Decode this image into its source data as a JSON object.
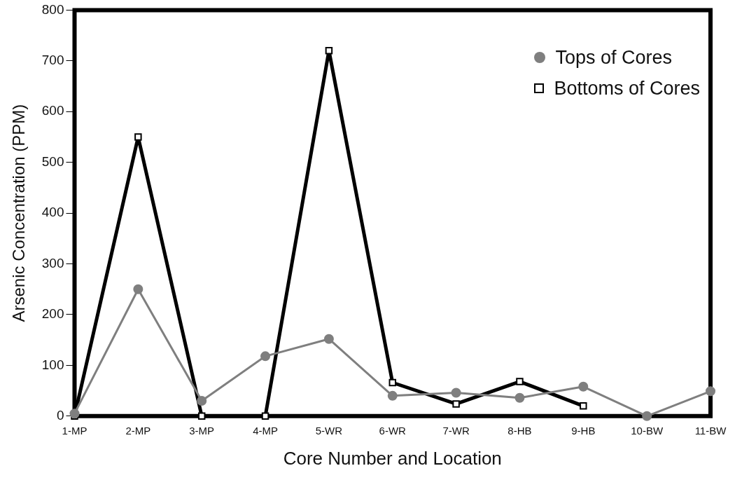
{
  "chart_data": {
    "type": "line",
    "xlabel": "Core Number and Location",
    "ylabel": "Arsenic Concentration (PPM)",
    "categories": [
      "1-MP",
      "2-MP",
      "3-MP",
      "4-MP",
      "5-WR",
      "6-WR",
      "7-WR",
      "8-HB",
      "9-HB",
      "10-BW",
      "11-BW"
    ],
    "series": [
      {
        "name": "Tops of Cores",
        "color": "#7f7f7f",
        "marker": "circle",
        "values": [
          5,
          250,
          30,
          118,
          152,
          40,
          46,
          36,
          58,
          0,
          49
        ]
      },
      {
        "name": "Bottoms of Cores",
        "color": "#000000",
        "marker": "square",
        "values": [
          0,
          550,
          0,
          0,
          720,
          66,
          24,
          68,
          20,
          null,
          null
        ]
      }
    ],
    "ylim": [
      0,
      800
    ],
    "yticks": [
      0,
      100,
      200,
      300,
      400,
      500,
      600,
      700,
      800
    ],
    "grid": false,
    "legend": "top right"
  }
}
